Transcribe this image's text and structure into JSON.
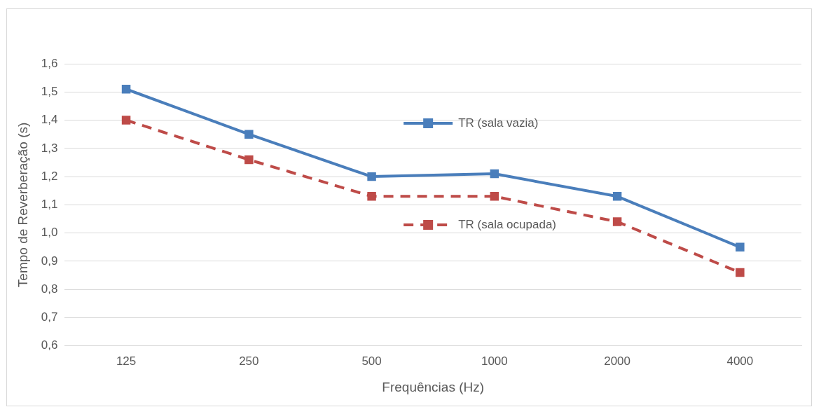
{
  "chart_data": {
    "type": "line",
    "xlabel": "Frequências (Hz)",
    "ylabel": "Tempo de Reverberação (s)",
    "categories": [
      "125",
      "250",
      "500",
      "1000",
      "2000",
      "4000"
    ],
    "series": [
      {
        "name": "TR (sala vazia)",
        "color": "#4a7ebb",
        "values": [
          1.51,
          1.35,
          1.2,
          1.21,
          1.13,
          0.95
        ],
        "line_style": "solid"
      },
      {
        "name": "TR (sala ocupada)",
        "color": "#be4b48",
        "values": [
          1.4,
          1.26,
          1.13,
          1.13,
          1.04,
          0.86
        ],
        "line_style": "dashed"
      }
    ],
    "ylim": [
      0.6,
      1.6
    ],
    "yticks": [
      {
        "value": 0.6,
        "label": "0,6"
      },
      {
        "value": 0.7,
        "label": "0,7"
      },
      {
        "value": 0.8,
        "label": "0,8"
      },
      {
        "value": 0.9,
        "label": "0,9"
      },
      {
        "value": 1.0,
        "label": "1,0"
      },
      {
        "value": 1.1,
        "label": "1,1"
      },
      {
        "value": 1.2,
        "label": "1,2"
      },
      {
        "value": 1.3,
        "label": "1,3"
      },
      {
        "value": 1.4,
        "label": "1,4"
      },
      {
        "value": 1.5,
        "label": "1,5"
      },
      {
        "value": 1.6,
        "label": "1,6"
      }
    ],
    "grid": "y",
    "legend": "top right",
    "marker": "square"
  }
}
